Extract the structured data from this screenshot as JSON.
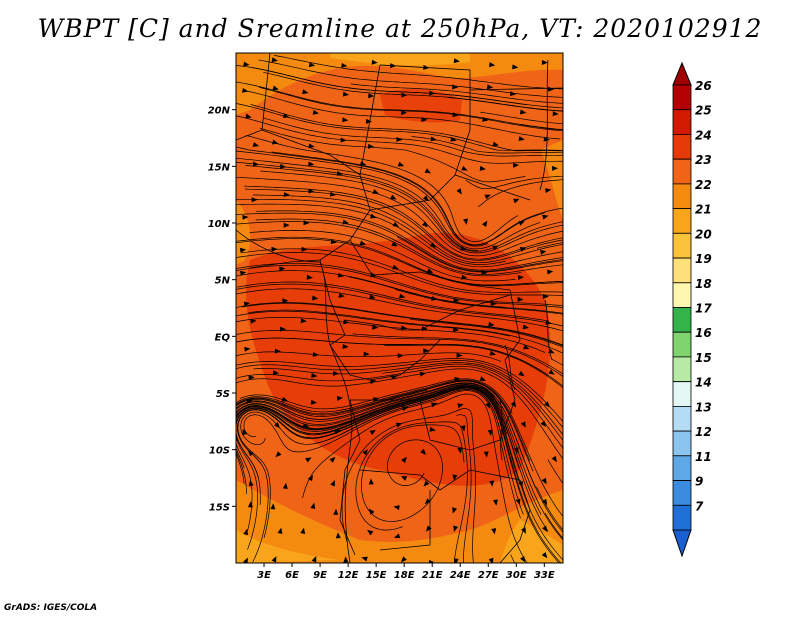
{
  "title": "WBPT [C] and Sreamline at 250hPa, VT: 2020102912",
  "credit": "GrADS: IGES/COLA",
  "map": {
    "lon_range": [
      0,
      35
    ],
    "lat_range": [
      -20,
      25
    ],
    "lat_ticks": [
      {
        "lat": 20,
        "label": "20N"
      },
      {
        "lat": 15,
        "label": "15N"
      },
      {
        "lat": 10,
        "label": "10N"
      },
      {
        "lat": 5,
        "label": "5N"
      },
      {
        "lat": 0,
        "label": "EQ"
      },
      {
        "lat": -5,
        "label": "5S"
      },
      {
        "lat": -10,
        "label": "10S"
      },
      {
        "lat": -15,
        "label": "15S"
      }
    ],
    "lon_ticks": [
      {
        "lon": 3,
        "label": "3E"
      },
      {
        "lon": 6,
        "label": "6E"
      },
      {
        "lon": 9,
        "label": "9E"
      },
      {
        "lon": 12,
        "label": "12E"
      },
      {
        "lon": 15,
        "label": "15E"
      },
      {
        "lon": 18,
        "label": "18E"
      },
      {
        "lon": 21,
        "label": "21E"
      },
      {
        "lon": 24,
        "label": "24E"
      },
      {
        "lon": 27,
        "label": "27E"
      },
      {
        "lon": 30,
        "label": "30E"
      },
      {
        "lon": 33,
        "label": "33E"
      }
    ],
    "dominant_field_color": "#f06418"
  },
  "colorbar": {
    "levels": [
      {
        "label": "26",
        "color": "#b30000"
      },
      {
        "label": "25",
        "color": "#d11a00"
      },
      {
        "label": "24",
        "color": "#e63a08"
      },
      {
        "label": "23",
        "color": "#f06418"
      },
      {
        "label": "22",
        "color": "#f58a10"
      },
      {
        "label": "21",
        "color": "#f9a51c"
      },
      {
        "label": "20",
        "color": "#fbc33c"
      },
      {
        "label": "19",
        "color": "#fde07a"
      },
      {
        "label": "18",
        "color": "#fff7b0"
      },
      {
        "label": "17",
        "color": "#34b34a"
      },
      {
        "label": "16",
        "color": "#7fd46e"
      },
      {
        "label": "15",
        "color": "#b6eaa5"
      },
      {
        "label": "14",
        "color": "#e3f7f4"
      },
      {
        "label": "13",
        "color": "#b4dcf5"
      },
      {
        "label": "12",
        "color": "#8cc4f0"
      },
      {
        "label": "11",
        "color": "#5ea8e8"
      },
      {
        "label": "9",
        "color": "#3b8be0"
      },
      {
        "label": "7",
        "color": "#1f6fd6"
      }
    ],
    "top_arrow_color": "#a00000",
    "bottom_arrow_color": "#1a5fd0"
  }
}
